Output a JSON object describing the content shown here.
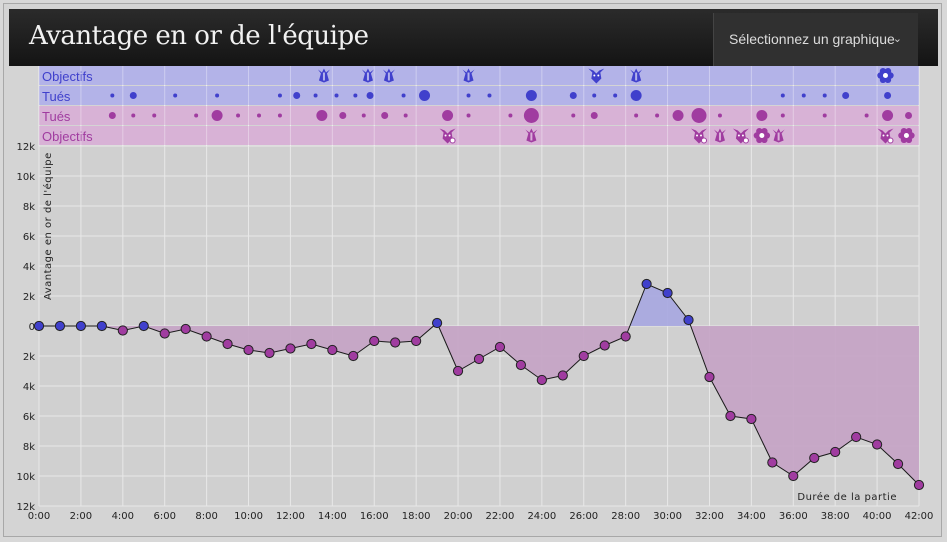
{
  "header": {
    "title": "Avantage en or de l'équipe",
    "select_label": "Sélectionnez un graphique",
    "chevron_icon": "chevron-down-icon"
  },
  "event_rows": [
    {
      "label": "Objectifs",
      "team": "blue"
    },
    {
      "label": "Tués",
      "team": "blue"
    },
    {
      "label": "Tués",
      "team": "purple"
    },
    {
      "label": "Objectifs",
      "team": "purple"
    }
  ],
  "colors": {
    "blue": "#4040cc",
    "purple": "#a03ca0",
    "blue_band": "#b3b3e8",
    "purple_band": "#d8b2d6",
    "blue_area": "#a6a6e0",
    "purple_area": "#c4a2c4"
  },
  "events": {
    "blue_objectives": [
      {
        "t": 13.6,
        "icon": "drake-icon"
      },
      {
        "t": 15.7,
        "icon": "drake-icon"
      },
      {
        "t": 16.7,
        "icon": "drake-icon"
      },
      {
        "t": 20.5,
        "icon": "drake-icon"
      },
      {
        "t": 26.6,
        "icon": "baron-icon"
      },
      {
        "t": 28.5,
        "icon": "drake-icon"
      },
      {
        "t": 40.4,
        "icon": "inhibitor-icon"
      }
    ],
    "blue_kills": [
      {
        "t": 3.5,
        "s": 1
      },
      {
        "t": 4.5,
        "s": 2
      },
      {
        "t": 6.5,
        "s": 1
      },
      {
        "t": 8.5,
        "s": 1
      },
      {
        "t": 11.5,
        "s": 1
      },
      {
        "t": 12.3,
        "s": 2
      },
      {
        "t": 13.2,
        "s": 1
      },
      {
        "t": 14.2,
        "s": 1
      },
      {
        "t": 15.1,
        "s": 1
      },
      {
        "t": 15.8,
        "s": 2
      },
      {
        "t": 17.4,
        "s": 1
      },
      {
        "t": 18.4,
        "s": 3
      },
      {
        "t": 20.5,
        "s": 1
      },
      {
        "t": 21.5,
        "s": 1
      },
      {
        "t": 23.5,
        "s": 3
      },
      {
        "t": 25.5,
        "s": 2
      },
      {
        "t": 26.5,
        "s": 1
      },
      {
        "t": 27.5,
        "s": 1
      },
      {
        "t": 28.5,
        "s": 3
      },
      {
        "t": 35.5,
        "s": 1
      },
      {
        "t": 36.5,
        "s": 1
      },
      {
        "t": 37.5,
        "s": 1
      },
      {
        "t": 38.5,
        "s": 2
      },
      {
        "t": 40.5,
        "s": 2
      }
    ],
    "purple_kills": [
      {
        "t": 3.5,
        "s": 2
      },
      {
        "t": 4.5,
        "s": 1
      },
      {
        "t": 5.5,
        "s": 1
      },
      {
        "t": 7.5,
        "s": 1
      },
      {
        "t": 8.5,
        "s": 3
      },
      {
        "t": 9.5,
        "s": 1
      },
      {
        "t": 10.5,
        "s": 1
      },
      {
        "t": 11.5,
        "s": 1
      },
      {
        "t": 13.5,
        "s": 3
      },
      {
        "t": 14.5,
        "s": 2
      },
      {
        "t": 15.5,
        "s": 1
      },
      {
        "t": 16.5,
        "s": 2
      },
      {
        "t": 17.5,
        "s": 1
      },
      {
        "t": 19.5,
        "s": 3
      },
      {
        "t": 20.5,
        "s": 1
      },
      {
        "t": 22.5,
        "s": 1
      },
      {
        "t": 23.5,
        "s": 4
      },
      {
        "t": 25.5,
        "s": 1
      },
      {
        "t": 26.5,
        "s": 2
      },
      {
        "t": 28.5,
        "s": 1
      },
      {
        "t": 29.5,
        "s": 1
      },
      {
        "t": 30.5,
        "s": 3
      },
      {
        "t": 31.5,
        "s": 4
      },
      {
        "t": 32.5,
        "s": 1
      },
      {
        "t": 34.5,
        "s": 3
      },
      {
        "t": 35.5,
        "s": 1
      },
      {
        "t": 37.5,
        "s": 1
      },
      {
        "t": 39.5,
        "s": 1
      },
      {
        "t": 40.5,
        "s": 3
      },
      {
        "t": 41.5,
        "s": 2
      }
    ],
    "purple_objectives": [
      {
        "t": 19.5,
        "icon": "baron-icon"
      },
      {
        "t": 23.5,
        "icon": "drake-icon"
      },
      {
        "t": 31.5,
        "icon": "baron-icon"
      },
      {
        "t": 32.5,
        "icon": "drake-icon"
      },
      {
        "t": 33.5,
        "icon": "baron-icon"
      },
      {
        "t": 34.5,
        "icon": "inhibitor-icon"
      },
      {
        "t": 35.3,
        "icon": "drake-icon"
      },
      {
        "t": 40.4,
        "icon": "baron-icon"
      },
      {
        "t": 41.4,
        "icon": "inhibitor-icon"
      }
    ]
  },
  "chart_data": {
    "type": "area",
    "ylabel": "Avantage en or de l'équipe",
    "xlabel": "Durée de la partie",
    "x_ticks": [
      "0:00",
      "2:00",
      "4:00",
      "6:00",
      "8:00",
      "10:00",
      "12:00",
      "14:00",
      "16:00",
      "18:00",
      "20:00",
      "22:00",
      "24:00",
      "26:00",
      "28:00",
      "30:00",
      "32:00",
      "34:00",
      "36:00",
      "38:00",
      "40:00",
      "42:00"
    ],
    "y_ticks": [
      "12k",
      "10k",
      "8k",
      "6k",
      "4k",
      "2k",
      "0",
      "2k",
      "4k",
      "6k",
      "8k",
      "10k",
      "12k"
    ],
    "xlim": [
      0,
      42
    ],
    "ylim": [
      -12000,
      12000
    ],
    "grid": true,
    "x_minutes": [
      0,
      1,
      2,
      3,
      4,
      5,
      6,
      7,
      8,
      9,
      10,
      11,
      12,
      13,
      14,
      15,
      16,
      17,
      18,
      19,
      20,
      21,
      22,
      23,
      24,
      25,
      26,
      27,
      28,
      29,
      30,
      31,
      32,
      33,
      34,
      35,
      36,
      37,
      38,
      39,
      40,
      41,
      42
    ],
    "values": [
      0,
      0,
      0,
      0,
      -300,
      0,
      -500,
      -200,
      -700,
      -1200,
      -1600,
      -1800,
      -1500,
      -1200,
      -1600,
      -2000,
      -1000,
      -1100,
      -1000,
      200,
      -3000,
      -2200,
      -1400,
      -2600,
      -3600,
      -3300,
      -2000,
      -1300,
      -700,
      2800,
      2200,
      400,
      -3400,
      -6000,
      -6200,
      -9100,
      -10000,
      -8800,
      -8400,
      -7400,
      -7900,
      -9200,
      -10600
    ]
  }
}
